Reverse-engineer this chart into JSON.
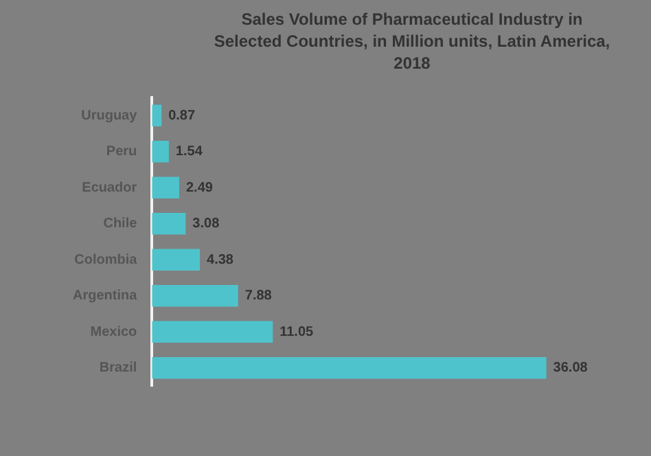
{
  "chart_data": {
    "type": "bar",
    "orientation": "horizontal",
    "title": "Sales Volume of Pharmaceutical Industry in Selected Countries, in Million units, Latin America, 2018",
    "categories": [
      "Uruguay",
      "Peru",
      "Ecuador",
      "Chile",
      "Colombia",
      "Argentina",
      "Mexico",
      "Brazil"
    ],
    "values": [
      0.87,
      1.54,
      2.49,
      3.08,
      4.38,
      7.88,
      11.05,
      36.08
    ],
    "color": "#4fc3cc",
    "data_labels": true,
    "grid": false,
    "legend": false
  }
}
